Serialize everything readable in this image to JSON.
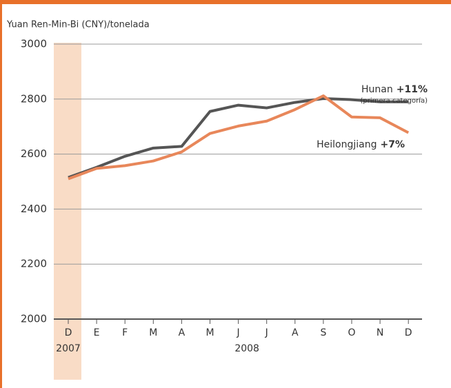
{
  "chart_data": {
    "type": "line",
    "y_axis_label": "Yuan Ren-Min-Bi (CNY)/tonelada",
    "categories": [
      "D",
      "E",
      "F",
      "M",
      "A",
      "M",
      "J",
      "J",
      "A",
      "S",
      "O",
      "N",
      "D"
    ],
    "years": [
      "2007",
      "2008"
    ],
    "series": [
      {
        "name": "Hunan",
        "change": "+11%",
        "note": "(primera categoría)",
        "color": "#555555",
        "values": [
          2515,
          2552,
          2592,
          2622,
          2628,
          2755,
          2778,
          2768,
          2788,
          2802,
          2798,
          2790,
          2790
        ]
      },
      {
        "name": "Heilongjiang",
        "change": "+7%",
        "color": "#e8875a",
        "values": [
          2510,
          2548,
          2558,
          2575,
          2608,
          2675,
          2702,
          2720,
          2762,
          2812,
          2735,
          2732,
          2678
        ]
      }
    ],
    "ylim": [
      2000,
      3000
    ],
    "yticks": [
      2000,
      2200,
      2400,
      2600,
      2800,
      3000
    ],
    "grid": true
  }
}
